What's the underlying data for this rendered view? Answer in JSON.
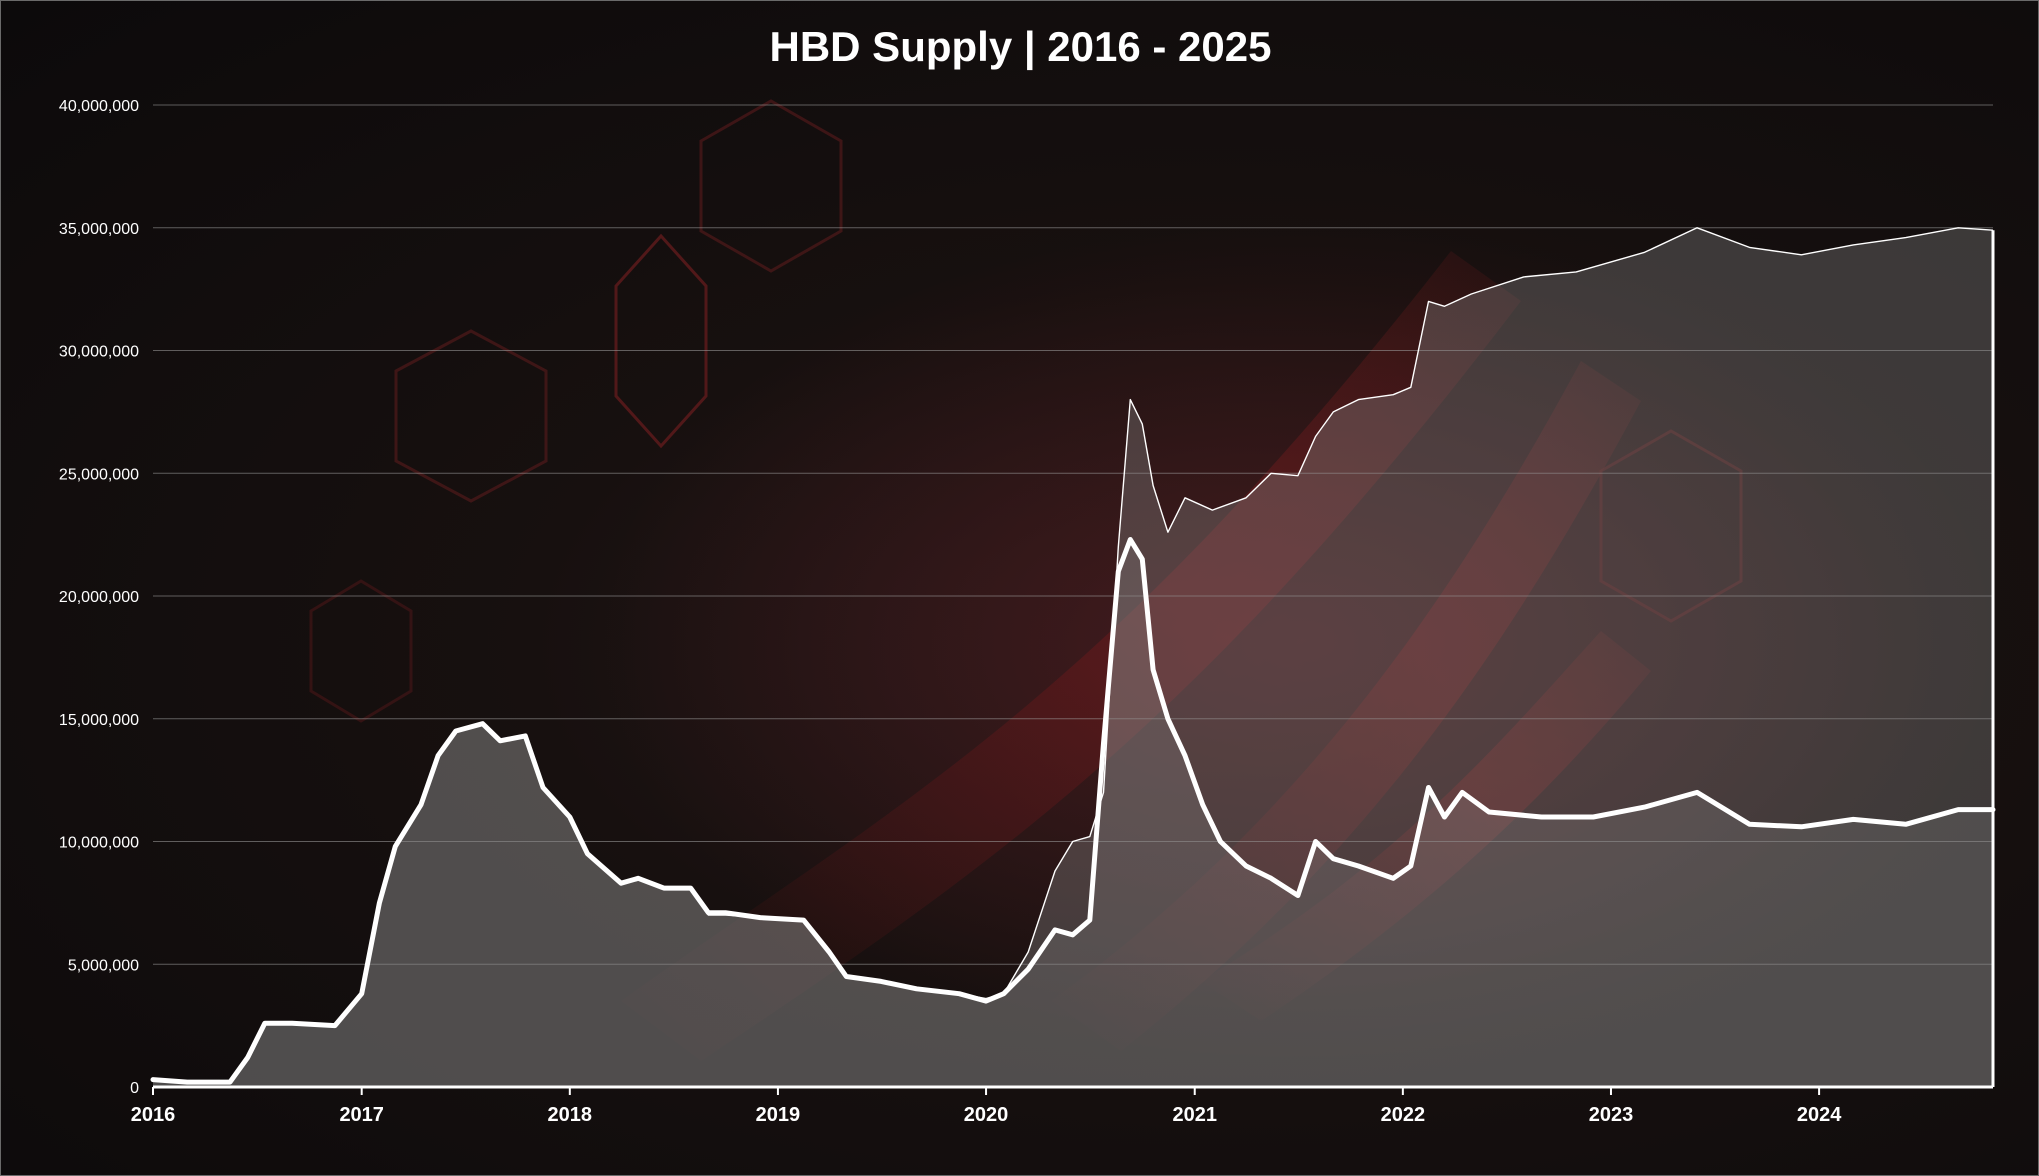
{
  "chart_data": {
    "type": "area",
    "title": "HBD Supply | 2016 - 2025",
    "xlabel": "",
    "ylabel": "",
    "ylim": [
      0,
      40000000
    ],
    "xlim": [
      "2016-01-01",
      "2024-11-01"
    ],
    "x_ticks": [
      "2016",
      "2017",
      "2018",
      "2019",
      "2020",
      "2021",
      "2022",
      "2023",
      "2024"
    ],
    "y_ticks": [
      "0",
      "5,000,000",
      "10,000,000",
      "15,000,000",
      "20,000,000",
      "25,000,000",
      "30,000,000",
      "35,000,000",
      "40,000,000"
    ],
    "grid": true,
    "legend": "none",
    "colors": {
      "bold_line": "#ffffff",
      "thin_line": "#ffffff",
      "fill": "#8a8a8a",
      "gridline": "#a0a0a0",
      "background": "#120d0e"
    },
    "series": [
      {
        "style": "thin-line-with-filled-area",
        "points": [
          [
            "2016-01-01",
            300000
          ],
          [
            "2016-03-01",
            200000
          ],
          [
            "2016-05-15",
            200000
          ],
          [
            "2016-06-15",
            1200000
          ],
          [
            "2016-07-15",
            2600000
          ],
          [
            "2016-09-01",
            2600000
          ],
          [
            "2016-11-15",
            2500000
          ],
          [
            "2017-01-01",
            3800000
          ],
          [
            "2017-02-01",
            7500000
          ],
          [
            "2017-03-01",
            9800000
          ],
          [
            "2017-04-15",
            11500000
          ],
          [
            "2017-05-15",
            13500000
          ],
          [
            "2017-06-15",
            14500000
          ],
          [
            "2017-08-01",
            14800000
          ],
          [
            "2017-09-01",
            14100000
          ],
          [
            "2017-10-15",
            14300000
          ],
          [
            "2017-11-15",
            12200000
          ],
          [
            "2018-01-01",
            11000000
          ],
          [
            "2018-02-01",
            9500000
          ],
          [
            "2018-04-01",
            8300000
          ],
          [
            "2018-05-01",
            8500000
          ],
          [
            "2018-06-15",
            8100000
          ],
          [
            "2018-08-01",
            8100000
          ],
          [
            "2018-09-01",
            7000000
          ],
          [
            "2018-10-01",
            7000000
          ],
          [
            "2018-12-01",
            6900000
          ],
          [
            "2019-02-15",
            6800000
          ],
          [
            "2019-04-01",
            5500000
          ],
          [
            "2019-05-01",
            4500000
          ],
          [
            "2019-07-01",
            4300000
          ],
          [
            "2019-09-01",
            4000000
          ],
          [
            "2019-11-15",
            3800000
          ],
          [
            "2020-01-01",
            3600000
          ],
          [
            "2020-02-01",
            3800000
          ],
          [
            "2020-03-15",
            5500000
          ],
          [
            "2020-05-01",
            8800000
          ],
          [
            "2020-06-01",
            10000000
          ],
          [
            "2020-07-01",
            10200000
          ],
          [
            "2020-07-25",
            12000000
          ],
          [
            "2020-08-20",
            22000000
          ],
          [
            "2020-09-10",
            28000000
          ],
          [
            "2020-10-01",
            27000000
          ],
          [
            "2020-10-20",
            24500000
          ],
          [
            "2020-11-15",
            22600000
          ],
          [
            "2020-12-15",
            24000000
          ],
          [
            "2021-02-01",
            23500000
          ],
          [
            "2021-04-01",
            24000000
          ],
          [
            "2021-05-15",
            25000000
          ],
          [
            "2021-07-01",
            24900000
          ],
          [
            "2021-08-01",
            26500000
          ],
          [
            "2021-09-01",
            27500000
          ],
          [
            "2021-10-15",
            28000000
          ],
          [
            "2021-12-15",
            28200000
          ],
          [
            "2022-01-15",
            28500000
          ],
          [
            "2022-02-15",
            32000000
          ],
          [
            "2022-03-15",
            31800000
          ],
          [
            "2022-05-01",
            32300000
          ],
          [
            "2022-08-01",
            33000000
          ],
          [
            "2022-11-01",
            33200000
          ],
          [
            "2023-03-01",
            34000000
          ],
          [
            "2023-06-01",
            35000000
          ],
          [
            "2023-09-01",
            34200000
          ],
          [
            "2023-12-01",
            33900000
          ],
          [
            "2024-03-01",
            34300000
          ],
          [
            "2024-06-01",
            34600000
          ],
          [
            "2024-09-01",
            35000000
          ],
          [
            "2024-11-01",
            34900000
          ]
        ]
      },
      {
        "style": "bold-line",
        "points": [
          [
            "2016-01-01",
            300000
          ],
          [
            "2016-03-01",
            200000
          ],
          [
            "2016-05-15",
            200000
          ],
          [
            "2016-06-15",
            1200000
          ],
          [
            "2016-07-15",
            2600000
          ],
          [
            "2016-09-01",
            2600000
          ],
          [
            "2016-11-15",
            2500000
          ],
          [
            "2017-01-01",
            3800000
          ],
          [
            "2017-02-01",
            7500000
          ],
          [
            "2017-03-01",
            9800000
          ],
          [
            "2017-04-15",
            11500000
          ],
          [
            "2017-05-15",
            13500000
          ],
          [
            "2017-06-15",
            14500000
          ],
          [
            "2017-08-01",
            14800000
          ],
          [
            "2017-09-01",
            14100000
          ],
          [
            "2017-10-15",
            14300000
          ],
          [
            "2017-11-15",
            12200000
          ],
          [
            "2018-01-01",
            11000000
          ],
          [
            "2018-02-01",
            9500000
          ],
          [
            "2018-04-01",
            8300000
          ],
          [
            "2018-05-01",
            8500000
          ],
          [
            "2018-06-15",
            8100000
          ],
          [
            "2018-08-01",
            8100000
          ],
          [
            "2018-09-01",
            7100000
          ],
          [
            "2018-10-01",
            7100000
          ],
          [
            "2018-12-01",
            6900000
          ],
          [
            "2019-02-15",
            6800000
          ],
          [
            "2019-04-01",
            5500000
          ],
          [
            "2019-05-01",
            4500000
          ],
          [
            "2019-07-01",
            4300000
          ],
          [
            "2019-09-01",
            4000000
          ],
          [
            "2019-11-15",
            3800000
          ],
          [
            "2020-01-01",
            3500000
          ],
          [
            "2020-02-01",
            3800000
          ],
          [
            "2020-03-15",
            4800000
          ],
          [
            "2020-05-01",
            6400000
          ],
          [
            "2020-06-01",
            6200000
          ],
          [
            "2020-07-01",
            6800000
          ],
          [
            "2020-07-25",
            14000000
          ],
          [
            "2020-08-20",
            21000000
          ],
          [
            "2020-09-10",
            22300000
          ],
          [
            "2020-10-01",
            21500000
          ],
          [
            "2020-10-20",
            17000000
          ],
          [
            "2020-11-15",
            15000000
          ],
          [
            "2020-12-15",
            13500000
          ],
          [
            "2021-01-15",
            11500000
          ],
          [
            "2021-02-15",
            10000000
          ],
          [
            "2021-04-01",
            9000000
          ],
          [
            "2021-05-15",
            8500000
          ],
          [
            "2021-07-01",
            7800000
          ],
          [
            "2021-08-01",
            10000000
          ],
          [
            "2021-09-01",
            9300000
          ],
          [
            "2021-10-15",
            9000000
          ],
          [
            "2021-12-15",
            8500000
          ],
          [
            "2022-01-15",
            9000000
          ],
          [
            "2022-02-15",
            12200000
          ],
          [
            "2022-03-15",
            11000000
          ],
          [
            "2022-04-15",
            12000000
          ],
          [
            "2022-06-01",
            11200000
          ],
          [
            "2022-09-01",
            11000000
          ],
          [
            "2022-12-01",
            11000000
          ],
          [
            "2023-03-01",
            11400000
          ],
          [
            "2023-06-01",
            12000000
          ],
          [
            "2023-09-01",
            10700000
          ],
          [
            "2023-12-01",
            10600000
          ],
          [
            "2024-03-01",
            10900000
          ],
          [
            "2024-06-01",
            10700000
          ],
          [
            "2024-09-01",
            11300000
          ],
          [
            "2024-11-01",
            11300000
          ]
        ]
      }
    ]
  }
}
